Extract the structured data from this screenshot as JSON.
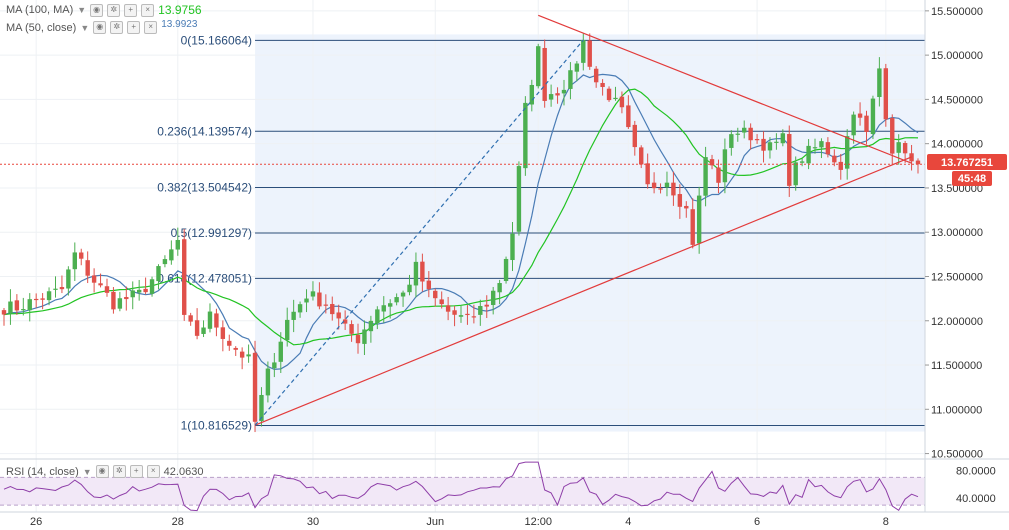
{
  "legends": {
    "ma100": {
      "label": "MA (100, MA)",
      "value": "13.9756",
      "color": "#22c322"
    },
    "ma50": {
      "label": "MA (50, close)",
      "value": "13.9923",
      "color": "#4a7cb5"
    },
    "rsi": {
      "label": "RSI (14, close)",
      "value": "42.0630",
      "color": "#8e3ea8"
    }
  },
  "price_badge": {
    "value": "13.767251",
    "timer": "45:48",
    "color": "#e8473c"
  },
  "chart_data": {
    "type": "candlestick",
    "title": "",
    "xlabel": "",
    "ylabel": "",
    "ylim": [
      10.45,
      15.6
    ],
    "y_ticks": [
      {
        "value": 15.5,
        "label": "15.500000"
      },
      {
        "value": 15.0,
        "label": "15.000000"
      },
      {
        "value": 14.5,
        "label": "14.500000"
      },
      {
        "value": 14.0,
        "label": "14.000000"
      },
      {
        "value": 13.5,
        "label": "13.500000"
      },
      {
        "value": 13.0,
        "label": "13.000000"
      },
      {
        "value": 12.5,
        "label": "12.500000"
      },
      {
        "value": 12.0,
        "label": "12.000000"
      },
      {
        "value": 11.5,
        "label": "11.500000"
      },
      {
        "value": 11.0,
        "label": "11.000000"
      },
      {
        "value": 10.5,
        "label": "10.500000"
      }
    ],
    "x_ticks": [
      {
        "index": 5,
        "label": "26"
      },
      {
        "index": 27,
        "label": "28"
      },
      {
        "index": 48,
        "label": "30"
      },
      {
        "index": 67,
        "label": "Jun"
      },
      {
        "index": 83,
        "label": "12:00"
      },
      {
        "index": 97,
        "label": "4"
      },
      {
        "index": 117,
        "label": "6"
      },
      {
        "index": 137,
        "label": "8"
      }
    ],
    "fibonacci": [
      {
        "ratio": "0",
        "label": "0(15.166064)",
        "value": 15.166064
      },
      {
        "ratio": "0.236",
        "label": "0.236(14.139574)",
        "value": 14.139574
      },
      {
        "ratio": "0.382",
        "label": "0.382(13.504542)",
        "value": 13.504542
      },
      {
        "ratio": "0.5",
        "label": "0.5(12.991297)",
        "value": 12.991297
      },
      {
        "ratio": "0.618",
        "label": "0.618(12.478051)",
        "value": 12.478051
      },
      {
        "ratio": "1",
        "label": "1(10.816529)",
        "value": 10.816529
      }
    ],
    "current_price": 13.767251,
    "anchors": [
      {
        "index": 2,
        "value": 12.15
      },
      {
        "index": 9,
        "value": 12.35
      },
      {
        "index": 11,
        "value": 12.75
      },
      {
        "index": 14,
        "value": 12.45
      },
      {
        "index": 17,
        "value": 12.2
      },
      {
        "index": 21,
        "value": 12.3
      },
      {
        "index": 24,
        "value": 12.55
      },
      {
        "index": 27,
        "value": 12.9
      },
      {
        "index": 28,
        "value": 12.0
      },
      {
        "index": 30,
        "value": 11.85
      },
      {
        "index": 32,
        "value": 12.05
      },
      {
        "index": 35,
        "value": 11.75
      },
      {
        "index": 38,
        "value": 11.55
      },
      {
        "index": 39,
        "value": 10.85
      },
      {
        "index": 41,
        "value": 11.4
      },
      {
        "index": 44,
        "value": 12.0
      },
      {
        "index": 47,
        "value": 12.3
      },
      {
        "index": 50,
        "value": 12.2
      },
      {
        "index": 53,
        "value": 11.9
      },
      {
        "index": 55,
        "value": 11.8
      },
      {
        "index": 58,
        "value": 12.15
      },
      {
        "index": 62,
        "value": 12.3
      },
      {
        "index": 64,
        "value": 12.6
      },
      {
        "index": 66,
        "value": 12.3
      },
      {
        "index": 69,
        "value": 12.1
      },
      {
        "index": 72,
        "value": 12.0
      },
      {
        "index": 75,
        "value": 12.2
      },
      {
        "index": 77,
        "value": 12.45
      },
      {
        "index": 79,
        "value": 13.0
      },
      {
        "index": 81,
        "value": 14.4
      },
      {
        "index": 83,
        "value": 15.05
      },
      {
        "index": 84,
        "value": 14.55
      },
      {
        "index": 86,
        "value": 14.6
      },
      {
        "index": 88,
        "value": 14.75
      },
      {
        "index": 90,
        "value": 15.15
      },
      {
        "index": 92,
        "value": 14.7
      },
      {
        "index": 94,
        "value": 14.55
      },
      {
        "index": 96,
        "value": 14.35
      },
      {
        "index": 98,
        "value": 13.9
      },
      {
        "index": 100,
        "value": 13.5
      },
      {
        "index": 103,
        "value": 13.6
      },
      {
        "index": 106,
        "value": 13.25
      },
      {
        "index": 107,
        "value": 12.9
      },
      {
        "index": 109,
        "value": 13.85
      },
      {
        "index": 111,
        "value": 13.6
      },
      {
        "index": 113,
        "value": 14.15
      },
      {
        "index": 116,
        "value": 14.1
      },
      {
        "index": 119,
        "value": 13.95
      },
      {
        "index": 121,
        "value": 14.05
      },
      {
        "index": 122,
        "value": 13.6
      },
      {
        "index": 124,
        "value": 13.85
      },
      {
        "index": 127,
        "value": 14.0
      },
      {
        "index": 130,
        "value": 13.75
      },
      {
        "index": 132,
        "value": 14.4
      },
      {
        "index": 134,
        "value": 14.1
      },
      {
        "index": 136,
        "value": 14.85
      },
      {
        "index": 137,
        "value": 14.35
      },
      {
        "index": 138,
        "value": 13.95
      },
      {
        "index": 140,
        "value": 13.95
      },
      {
        "index": 141,
        "value": 13.77
      }
    ],
    "trendlines": [
      {
        "name": "upper",
        "from": [
          83,
          15.45
        ],
        "to": [
          141,
          13.78
        ]
      },
      {
        "name": "lower",
        "from": [
          39,
          10.82
        ],
        "to": [
          141,
          13.85
        ]
      },
      {
        "name": "fib-diagonal",
        "from": [
          39,
          10.82
        ],
        "to": [
          90,
          15.17
        ]
      }
    ],
    "rsi": {
      "ylim": [
        20,
        95
      ],
      "ticks": [
        {
          "value": 80,
          "label": "80.0000"
        },
        {
          "value": 40,
          "label": "40.0000"
        }
      ],
      "bands": [
        70,
        30
      ],
      "current": 42.063
    }
  }
}
